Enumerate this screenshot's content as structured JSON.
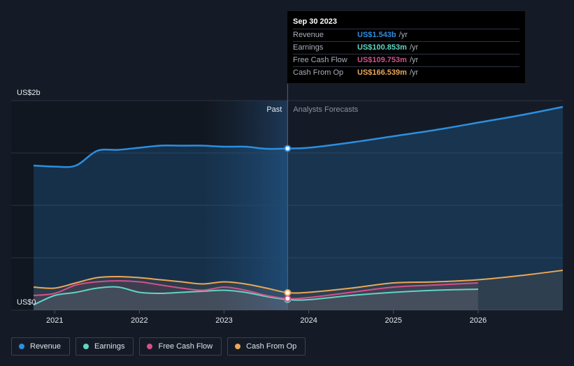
{
  "chart_data": {
    "type": "area",
    "y_unit_top_label": "US$2b",
    "y_unit_bottom_label": "US$0",
    "ylim": [
      0,
      2.0
    ],
    "xlim": [
      2020.75,
      2027.0
    ],
    "x_ticks": [
      {
        "label": "2021",
        "value": 2021.0
      },
      {
        "label": "2022",
        "value": 2022.0
      },
      {
        "label": "2023",
        "value": 2023.0
      },
      {
        "label": "2024",
        "value": 2024.0
      },
      {
        "label": "2025",
        "value": 2025.0
      },
      {
        "label": "2026",
        "value": 2026.0
      }
    ],
    "past_label": "Past",
    "forecast_label": "Analysts Forecasts",
    "divider_x": 2023.75,
    "highlight_start_x": 2022.75,
    "forecast_shade_start_x": 2026.0,
    "series": [
      {
        "name": "Revenue",
        "color": "#2b8fe0",
        "points": [
          [
            2020.75,
            1.38
          ],
          [
            2021.0,
            1.37
          ],
          [
            2021.25,
            1.38
          ],
          [
            2021.5,
            1.52
          ],
          [
            2021.75,
            1.53
          ],
          [
            2022.0,
            1.55
          ],
          [
            2022.25,
            1.57
          ],
          [
            2022.5,
            1.57
          ],
          [
            2022.75,
            1.57
          ],
          [
            2023.0,
            1.56
          ],
          [
            2023.25,
            1.56
          ],
          [
            2023.5,
            1.54
          ],
          [
            2023.75,
            1.543
          ],
          [
            2024.0,
            1.55
          ],
          [
            2024.5,
            1.6
          ],
          [
            2025.0,
            1.66
          ],
          [
            2025.5,
            1.72
          ],
          [
            2026.0,
            1.79
          ],
          [
            2026.5,
            1.86
          ],
          [
            2027.0,
            1.94
          ]
        ]
      },
      {
        "name": "Earnings",
        "color": "#5fd6c4",
        "points": [
          [
            2020.75,
            0.05
          ],
          [
            2021.0,
            0.14
          ],
          [
            2021.25,
            0.17
          ],
          [
            2021.5,
            0.21
          ],
          [
            2021.75,
            0.22
          ],
          [
            2022.0,
            0.17
          ],
          [
            2022.25,
            0.16
          ],
          [
            2022.5,
            0.17
          ],
          [
            2022.75,
            0.18
          ],
          [
            2023.0,
            0.19
          ],
          [
            2023.25,
            0.17
          ],
          [
            2023.5,
            0.13
          ],
          [
            2023.75,
            0.101
          ],
          [
            2024.0,
            0.1
          ],
          [
            2024.5,
            0.14
          ],
          [
            2025.0,
            0.17
          ],
          [
            2025.5,
            0.19
          ],
          [
            2026.0,
            0.2
          ]
        ]
      },
      {
        "name": "Free Cash Flow",
        "color": "#d4508c",
        "points": [
          [
            2020.75,
            0.14
          ],
          [
            2021.0,
            0.16
          ],
          [
            2021.25,
            0.24
          ],
          [
            2021.5,
            0.27
          ],
          [
            2021.75,
            0.28
          ],
          [
            2022.0,
            0.27
          ],
          [
            2022.25,
            0.24
          ],
          [
            2022.5,
            0.21
          ],
          [
            2022.75,
            0.19
          ],
          [
            2023.0,
            0.22
          ],
          [
            2023.25,
            0.19
          ],
          [
            2023.5,
            0.14
          ],
          [
            2023.75,
            0.11
          ],
          [
            2024.0,
            0.12
          ],
          [
            2024.5,
            0.17
          ],
          [
            2025.0,
            0.22
          ],
          [
            2025.5,
            0.24
          ],
          [
            2026.0,
            0.26
          ]
        ]
      },
      {
        "name": "Cash From Op",
        "color": "#e9a857",
        "points": [
          [
            2020.75,
            0.22
          ],
          [
            2021.0,
            0.21
          ],
          [
            2021.25,
            0.26
          ],
          [
            2021.5,
            0.31
          ],
          [
            2021.75,
            0.32
          ],
          [
            2022.0,
            0.31
          ],
          [
            2022.25,
            0.29
          ],
          [
            2022.5,
            0.27
          ],
          [
            2022.75,
            0.25
          ],
          [
            2023.0,
            0.27
          ],
          [
            2023.25,
            0.25
          ],
          [
            2023.5,
            0.21
          ],
          [
            2023.75,
            0.167
          ],
          [
            2024.0,
            0.17
          ],
          [
            2024.5,
            0.21
          ],
          [
            2025.0,
            0.26
          ],
          [
            2025.5,
            0.27
          ],
          [
            2026.0,
            0.29
          ],
          [
            2026.5,
            0.33
          ],
          [
            2027.0,
            0.38
          ]
        ]
      }
    ]
  },
  "tooltip": {
    "date": "Sep 30 2023",
    "rows": [
      {
        "label": "Revenue",
        "value": "US$1.543b",
        "unit": "/yr",
        "color": "#2b8fe0"
      },
      {
        "label": "Earnings",
        "value": "US$100.853m",
        "unit": "/yr",
        "color": "#5fd6c4"
      },
      {
        "label": "Free Cash Flow",
        "value": "US$109.753m",
        "unit": "/yr",
        "color": "#d4508c"
      },
      {
        "label": "Cash From Op",
        "value": "US$166.539m",
        "unit": "/yr",
        "color": "#e9a857"
      }
    ]
  },
  "legend": [
    {
      "label": "Revenue",
      "color": "#2b8fe0"
    },
    {
      "label": "Earnings",
      "color": "#5fd6c4"
    },
    {
      "label": "Free Cash Flow",
      "color": "#d4508c"
    },
    {
      "label": "Cash From Op",
      "color": "#e9a857"
    }
  ]
}
